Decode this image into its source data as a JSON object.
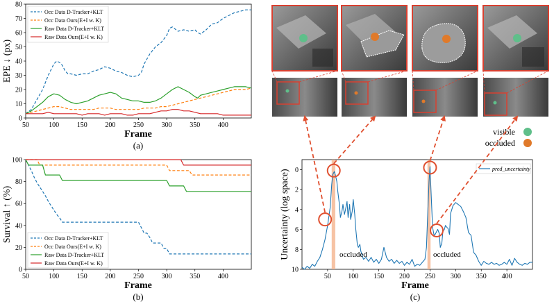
{
  "colors": {
    "blue": "#1f77b4",
    "orange": "#ff7f0e",
    "green": "#2ca02c",
    "red": "#d62728",
    "highlight": "#e05030",
    "visible_dot": "#5fbf8a",
    "occluded_dot": "#e07a2a",
    "shade": "#f5b895"
  },
  "chart_data": [
    {
      "type": "line",
      "panel": "(a)",
      "xlabel": "Frame",
      "ylabel": "EPE ↓ (px)",
      "xlim": [
        50,
        450
      ],
      "ylim": [
        0,
        80
      ],
      "xticks": [
        50,
        100,
        150,
        200,
        250,
        300,
        350,
        400
      ],
      "yticks": [
        0,
        10,
        20,
        30,
        40,
        50,
        60,
        70,
        80
      ],
      "legend_position": "top-left",
      "series": [
        {
          "name": "Occ Data D-Tracker+KLT",
          "style": "dashed",
          "color": "#1f77b4",
          "x": [
            50,
            60,
            70,
            80,
            90,
            100,
            105,
            110,
            115,
            120,
            125,
            130,
            140,
            150,
            160,
            170,
            180,
            190,
            200,
            210,
            220,
            230,
            240,
            250,
            255,
            260,
            270,
            280,
            290,
            300,
            305,
            310,
            320,
            330,
            340,
            350,
            355,
            360,
            370,
            380,
            390,
            400,
            410,
            420,
            430,
            440,
            450
          ],
          "y": [
            3,
            6,
            13,
            20,
            30,
            38,
            40,
            39,
            37,
            33,
            31,
            31,
            30,
            31,
            31,
            33,
            34,
            36,
            35,
            33,
            32,
            30,
            29,
            30,
            32,
            38,
            45,
            50,
            53,
            58,
            63,
            64,
            61,
            62,
            61,
            62,
            60,
            59,
            62,
            66,
            67,
            70,
            72,
            74,
            75,
            76,
            76
          ]
        },
        {
          "name": "Occ Data Ours(E+I w. K)",
          "style": "dashed",
          "color": "#ff7f0e",
          "x": [
            50,
            60,
            70,
            80,
            90,
            100,
            110,
            120,
            130,
            140,
            150,
            160,
            170,
            180,
            190,
            200,
            210,
            220,
            230,
            240,
            250,
            260,
            270,
            280,
            290,
            300,
            310,
            320,
            330,
            340,
            350,
            360,
            370,
            380,
            390,
            400,
            410,
            420,
            430,
            440,
            450
          ],
          "y": [
            3,
            4,
            5,
            6,
            7,
            8,
            8,
            7,
            6,
            6,
            6,
            6,
            6,
            7,
            7,
            7,
            6,
            6,
            6,
            6,
            6,
            7,
            7,
            7,
            8,
            8,
            9,
            10,
            11,
            12,
            13,
            14,
            15,
            16,
            17,
            18,
            19,
            20,
            20,
            20,
            21
          ]
        },
        {
          "name": "Raw Data D-Tracker+KLT",
          "style": "solid",
          "color": "#2ca02c",
          "x": [
            50,
            60,
            70,
            80,
            90,
            100,
            110,
            120,
            130,
            140,
            150,
            160,
            170,
            180,
            190,
            200,
            210,
            220,
            230,
            240,
            250,
            260,
            270,
            280,
            290,
            300,
            310,
            320,
            330,
            340,
            350,
            355,
            360,
            370,
            380,
            390,
            400,
            410,
            420,
            430,
            440,
            450
          ],
          "y": [
            3,
            5,
            8,
            11,
            15,
            17,
            16,
            13,
            11,
            10,
            11,
            12,
            14,
            16,
            17,
            18,
            17,
            14,
            13,
            12,
            12,
            11,
            11,
            12,
            14,
            17,
            20,
            22,
            20,
            18,
            15,
            14,
            16,
            17,
            18,
            19,
            20,
            21,
            22,
            22,
            22,
            21
          ]
        },
        {
          "name": "Raw Data Ours(E+I w. K)",
          "style": "solid",
          "color": "#d62728",
          "x": [
            50,
            60,
            70,
            80,
            90,
            100,
            110,
            120,
            130,
            140,
            150,
            160,
            170,
            180,
            190,
            200,
            210,
            220,
            230,
            240,
            250,
            260,
            270,
            280,
            290,
            300,
            310,
            320,
            330,
            340,
            350,
            360,
            370,
            380,
            390,
            400,
            410,
            420,
            430,
            440,
            450
          ],
          "y": [
            3,
            3,
            3,
            3,
            4,
            3,
            3,
            3,
            3,
            3,
            2,
            3,
            3,
            3,
            2,
            3,
            3,
            3,
            2,
            2,
            3,
            3,
            3,
            4,
            5,
            5,
            6,
            6,
            5,
            5,
            4,
            3,
            3,
            3,
            3,
            2,
            2,
            2,
            2,
            2,
            2
          ]
        }
      ]
    },
    {
      "type": "line",
      "panel": "(b)",
      "xlabel": "Frame",
      "ylabel": "Survival ↑ (%)",
      "xlim": [
        50,
        450
      ],
      "ylim": [
        0,
        100
      ],
      "xticks": [
        50,
        100,
        150,
        200,
        250,
        300,
        350,
        400
      ],
      "yticks": [
        0,
        20,
        40,
        60,
        80,
        100
      ],
      "legend_position": "bottom-left",
      "series": [
        {
          "name": "Occ Data D-Tracker+KLT",
          "style": "dashed",
          "color": "#1f77b4",
          "x": [
            50,
            55,
            60,
            65,
            70,
            75,
            80,
            85,
            90,
            95,
            100,
            105,
            110,
            115,
            120,
            250,
            255,
            260,
            265,
            270,
            275,
            290,
            295,
            300,
            305,
            450
          ],
          "y": [
            100,
            95,
            90,
            84,
            79,
            75,
            71,
            67,
            62,
            58,
            54,
            50,
            47,
            43,
            43,
            43,
            38,
            33,
            33,
            29,
            24,
            24,
            19,
            19,
            14,
            14
          ]
        },
        {
          "name": "Occ Data Ours(E+I w. K)",
          "style": "dashed",
          "color": "#ff7f0e",
          "x": [
            50,
            70,
            75,
            300,
            305,
            340,
            345,
            450
          ],
          "y": [
            100,
            100,
            95,
            95,
            90,
            90,
            86,
            86
          ]
        },
        {
          "name": "Raw Data D-Tracker+KLT",
          "style": "solid",
          "color": "#2ca02c",
          "x": [
            50,
            55,
            80,
            85,
            110,
            115,
            300,
            305,
            330,
            335,
            450
          ],
          "y": [
            100,
            95,
            95,
            86,
            86,
            81,
            81,
            76,
            76,
            71,
            71
          ]
        },
        {
          "name": "Raw Data Ours(E+I w. K)",
          "style": "solid",
          "color": "#d62728",
          "x": [
            50,
            55,
            325,
            330,
            450
          ],
          "y": [
            100,
            100,
            100,
            95,
            95
          ]
        }
      ]
    },
    {
      "type": "line",
      "panel": "(c)",
      "xlabel": "Frame",
      "ylabel": "Uncertainty (log space)",
      "xlim": [
        0,
        450
      ],
      "ylim": [
        -10,
        1
      ],
      "xticks": [
        50,
        100,
        150,
        200,
        250,
        300,
        350,
        400
      ],
      "yticks": [
        0,
        -2,
        -4,
        -6,
        -8,
        -10
      ],
      "ytick_labels": [
        "0",
        "2",
        "4",
        "6",
        "8",
        "10"
      ],
      "legend_position": "top-right",
      "shaded_regions": [
        [
          58,
          65
        ],
        [
          245,
          251
        ]
      ],
      "annotations": [
        "occluded",
        "occluded"
      ],
      "series": [
        {
          "name": "pred_uncertainty",
          "style": "solid",
          "color": "#1f77b4",
          "x": [
            0,
            5,
            10,
            15,
            20,
            25,
            30,
            35,
            40,
            45,
            50,
            55,
            58,
            60,
            63,
            65,
            68,
            70,
            73,
            75,
            78,
            80,
            83,
            85,
            88,
            90,
            93,
            95,
            98,
            100,
            103,
            105,
            108,
            110,
            113,
            115,
            120,
            125,
            130,
            135,
            140,
            145,
            150,
            155,
            160,
            165,
            170,
            175,
            180,
            185,
            190,
            195,
            200,
            205,
            210,
            215,
            220,
            225,
            230,
            235,
            240,
            243,
            245,
            248,
            250,
            252,
            255,
            258,
            260,
            263,
            265,
            268,
            270,
            273,
            275,
            278,
            280,
            283,
            285,
            288,
            290,
            295,
            300,
            305,
            310,
            315,
            320,
            325,
            330,
            335,
            340,
            345,
            350,
            355,
            360,
            365,
            370,
            375,
            380,
            385,
            390,
            395,
            400,
            405,
            410,
            415,
            420,
            425,
            430,
            435,
            440,
            445,
            450
          ],
          "y": [
            -9.8,
            -10,
            -9.7,
            -9.9,
            -9.5,
            -9.7,
            -9.2,
            -8.8,
            -8.0,
            -7.0,
            -5.6,
            -3.8,
            -1.5,
            -0.5,
            -0.2,
            -0.5,
            -1.2,
            -2.2,
            -3.5,
            -4.8,
            -4.2,
            -3.5,
            -4.5,
            -4.0,
            -3.2,
            -4.8,
            -3.5,
            -5.0,
            -4.2,
            -3.0,
            -4.5,
            -6.0,
            -7.5,
            -7.8,
            -7.5,
            -8.2,
            -9.0,
            -8.8,
            -9.2,
            -8.8,
            -9.3,
            -9.0,
            -9.4,
            -9.0,
            -7.8,
            -8.8,
            -9.2,
            -9.0,
            -9.4,
            -9.1,
            -9.4,
            -9.2,
            -9.6,
            -9.3,
            -9.5,
            -9.0,
            -9.7,
            -9.5,
            -9.6,
            -9.3,
            -9.0,
            -7.8,
            -5.0,
            -1.2,
            0.3,
            -2.2,
            -5.8,
            -6.6,
            -6.5,
            -6.2,
            -6.0,
            -6.4,
            -7.8,
            -7.4,
            -6.2,
            -6.0,
            -5.6,
            -5.8,
            -5.9,
            -6.5,
            -4.4,
            -3.6,
            -3.3,
            -3.5,
            -3.7,
            -4.2,
            -4.8,
            -6.3,
            -6.6,
            -8.3,
            -8.6,
            -9.2,
            -9.6,
            -9.2,
            -9.4,
            -9.5,
            -9.3,
            -9.5,
            -9.4,
            -9.6,
            -9.5,
            -9.3,
            -9.5,
            -9.0,
            -9.6,
            -8.9,
            -9.3,
            -9.5,
            -9.6,
            -9.4,
            -9.5,
            -9.3,
            -9.3
          ]
        }
      ]
    }
  ],
  "captions": {
    "a": "(a)",
    "b": "(b)",
    "c": "(c)"
  },
  "side_legend": {
    "visible": "visible",
    "occluded": "occluded"
  }
}
